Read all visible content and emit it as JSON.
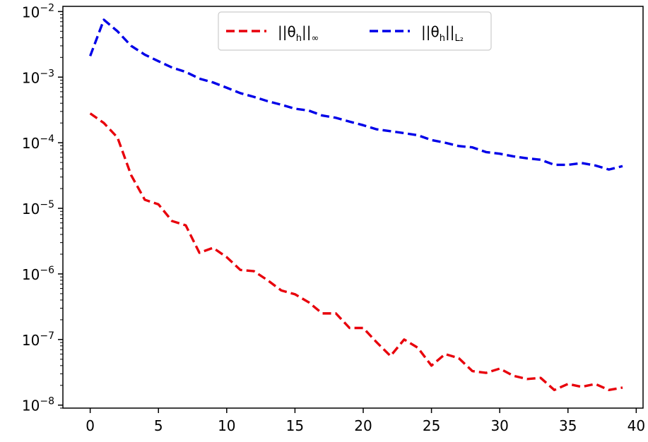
{
  "chart_data": {
    "type": "line",
    "title": "",
    "xlabel": "",
    "ylabel": "",
    "xlim": [
      -2,
      40.5
    ],
    "ylim": [
      9e-09,
      0.012
    ],
    "yscale": "log",
    "grid": false,
    "legend_position": "top-center",
    "x_ticks": [
      "0",
      "5",
      "10",
      "15",
      "20",
      "25",
      "30",
      "35",
      "40"
    ],
    "x_tick_values": [
      0,
      5,
      10,
      15,
      20,
      25,
      30,
      35,
      40
    ],
    "y_tick_values": [
      1e-08,
      1e-07,
      1e-06,
      1e-05,
      0.0001,
      0.001,
      0.01
    ],
    "y_ticks": [
      {
        "base": "10",
        "exp": "−8"
      },
      {
        "base": "10",
        "exp": "−7"
      },
      {
        "base": "10",
        "exp": "−6"
      },
      {
        "base": "10",
        "exp": "−5"
      },
      {
        "base": "10",
        "exp": "−4"
      },
      {
        "base": "10",
        "exp": "−3"
      },
      {
        "base": "10",
        "exp": "−2"
      }
    ],
    "x": [
      0,
      1,
      2,
      3,
      4,
      5,
      6,
      7,
      8,
      9,
      10,
      11,
      12,
      13,
      14,
      15,
      16,
      17,
      18,
      19,
      20,
      21,
      22,
      23,
      24,
      25,
      26,
      27,
      28,
      29,
      30,
      31,
      32,
      33,
      34,
      35,
      36,
      37,
      38,
      39
    ],
    "series": [
      {
        "name": "||θh||∞",
        "legend": {
          "main": "||θ",
          "sub": "h",
          "tail": "||",
          "tail_sub": "∞"
        },
        "color": "#e8000b",
        "values": [
          0.00028,
          0.0002,
          0.00012,
          3.2e-05,
          1.35e-05,
          1.15e-05,
          6.4e-06,
          5.5e-06,
          2.1e-06,
          2.5e-06,
          1.8e-06,
          1.15e-06,
          1.1e-06,
          8e-07,
          5.6e-07,
          4.9e-07,
          3.7e-07,
          2.5e-07,
          2.5e-07,
          1.5e-07,
          1.5e-07,
          9e-08,
          5.6e-08,
          1e-07,
          7.5e-08,
          4e-08,
          6e-08,
          5.2e-08,
          3.3e-08,
          3.1e-08,
          3.6e-08,
          2.8e-08,
          2.5e-08,
          2.6e-08,
          1.7e-08,
          2.1e-08,
          1.9e-08,
          2.1e-08,
          1.7e-08,
          1.85e-08
        ]
      },
      {
        "name": "||θh||L2",
        "legend": {
          "main": "||θ",
          "sub": "h",
          "tail": "||",
          "tail_sub": "L₂"
        },
        "color": "#0000e8",
        "values": [
          0.0021,
          0.0075,
          0.005,
          0.003,
          0.0022,
          0.00175,
          0.0014,
          0.0012,
          0.00095,
          0.00083,
          0.00069,
          0.00057,
          0.0005,
          0.00043,
          0.00038,
          0.00033,
          0.00031,
          0.00026,
          0.00024,
          0.00021,
          0.000185,
          0.00016,
          0.00015,
          0.00014,
          0.00013,
          0.00011,
          0.0001,
          8.9e-05,
          8.5e-05,
          7.2e-05,
          6.8e-05,
          6.2e-05,
          5.8e-05,
          5.5e-05,
          4.6e-05,
          4.6e-05,
          4.9e-05,
          4.5e-05,
          3.9e-05,
          4.4e-05
        ]
      }
    ]
  }
}
